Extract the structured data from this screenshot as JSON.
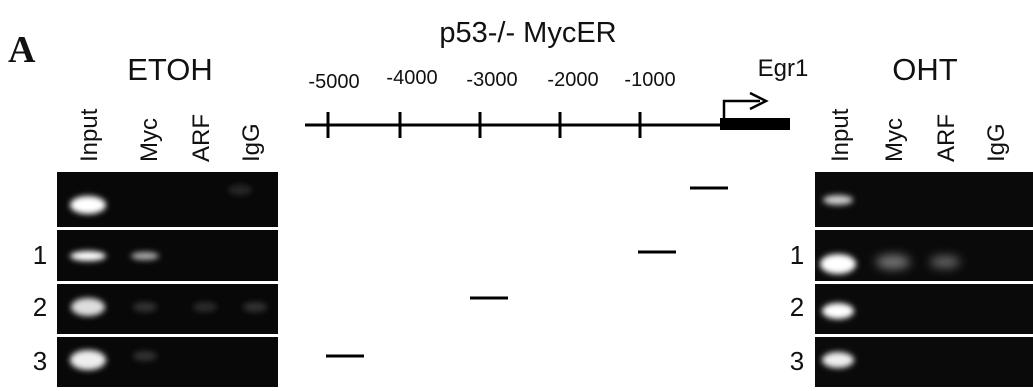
{
  "panel_label": "A",
  "title": "p53-/- MycER",
  "left": {
    "title": "ETOH",
    "lanes": [
      "Input",
      "Myc",
      "ARF",
      "IgG"
    ],
    "rows": [
      "1",
      "2",
      "3"
    ]
  },
  "right": {
    "title": "OHT",
    "lanes": [
      "Input",
      "Myc",
      "ARF",
      "IgG"
    ],
    "rows": [
      "1",
      "2",
      "3"
    ]
  },
  "diagram": {
    "positions": [
      "-5000",
      "-4000",
      "-3000",
      "-2000",
      "-1000"
    ],
    "gene": "Egr1"
  }
}
